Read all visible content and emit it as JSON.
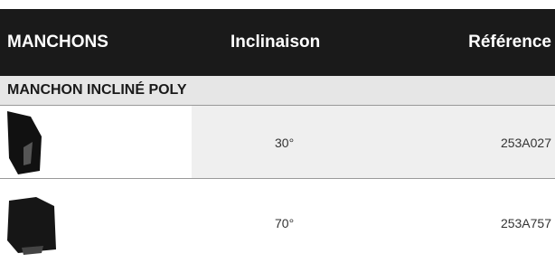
{
  "table": {
    "header": [
      "MANCHONS",
      "Inclinaison",
      "Référence"
    ],
    "section": "MANCHON INCLINÉ POLY",
    "rows": [
      [
        "30°",
        "253A027"
      ],
      [
        "70°",
        "253A757"
      ]
    ]
  }
}
